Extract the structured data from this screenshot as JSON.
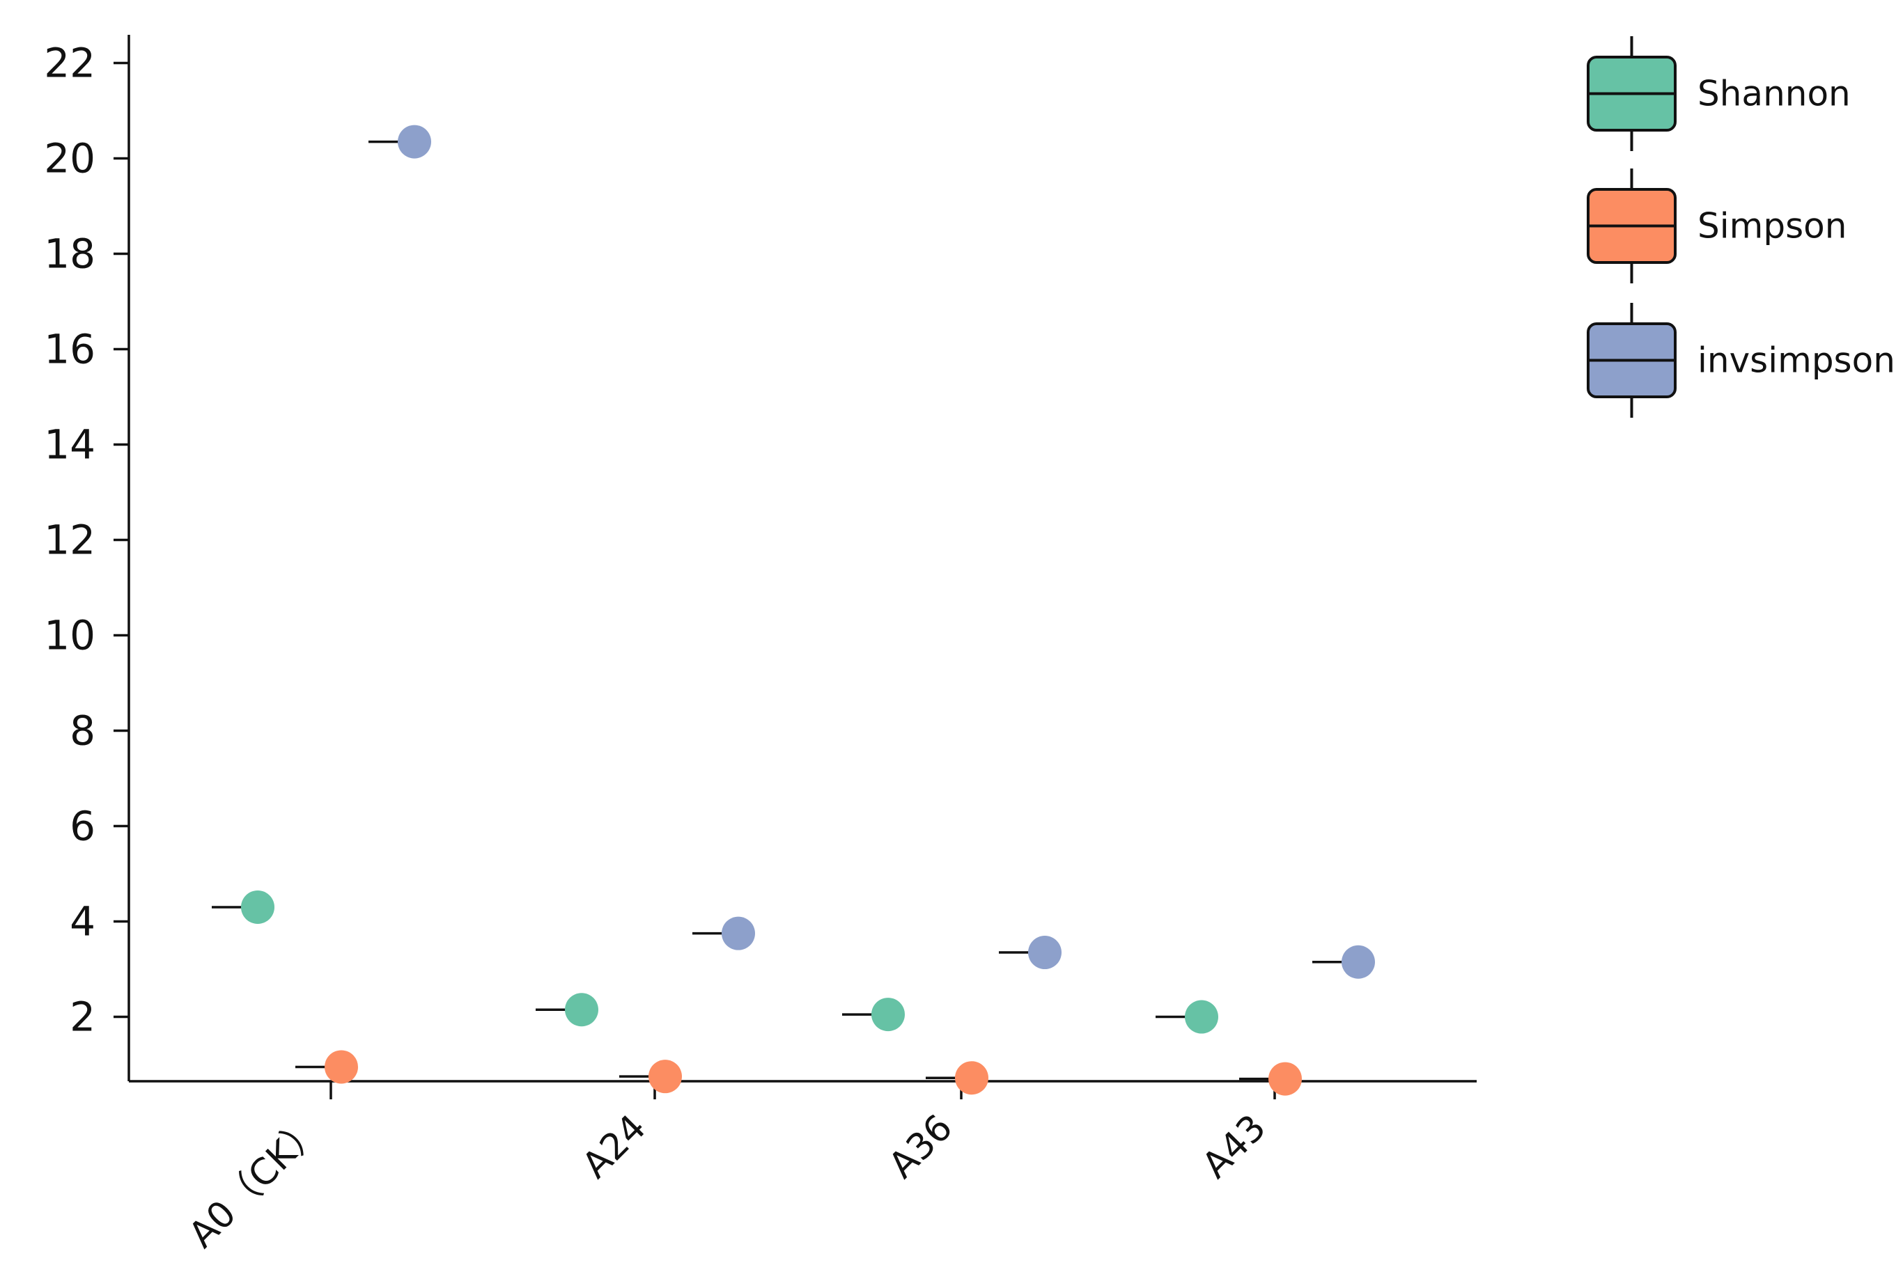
{
  "chart_data": {
    "type": "box",
    "title": "",
    "xlabel": "",
    "ylabel": "",
    "categories": [
      "A0（CK）",
      "A24",
      "A36",
      "A43"
    ],
    "yticks": [
      2,
      4,
      6,
      8,
      10,
      12,
      14,
      16,
      18,
      20,
      22
    ],
    "ylim": [
      0.65,
      22.3
    ],
    "grid": false,
    "legend_position": "top-right",
    "series": [
      {
        "name": "Shannon",
        "color": "#66c2a5",
        "values": [
          4.3,
          2.15,
          2.05,
          2.0
        ]
      },
      {
        "name": "Simpson",
        "color": "#fc8d62",
        "values": [
          0.95,
          0.75,
          0.72,
          0.7
        ]
      },
      {
        "name": "invsimpson",
        "color": "#8da0cb",
        "values": [
          20.35,
          3.75,
          3.35,
          3.15
        ]
      }
    ]
  }
}
